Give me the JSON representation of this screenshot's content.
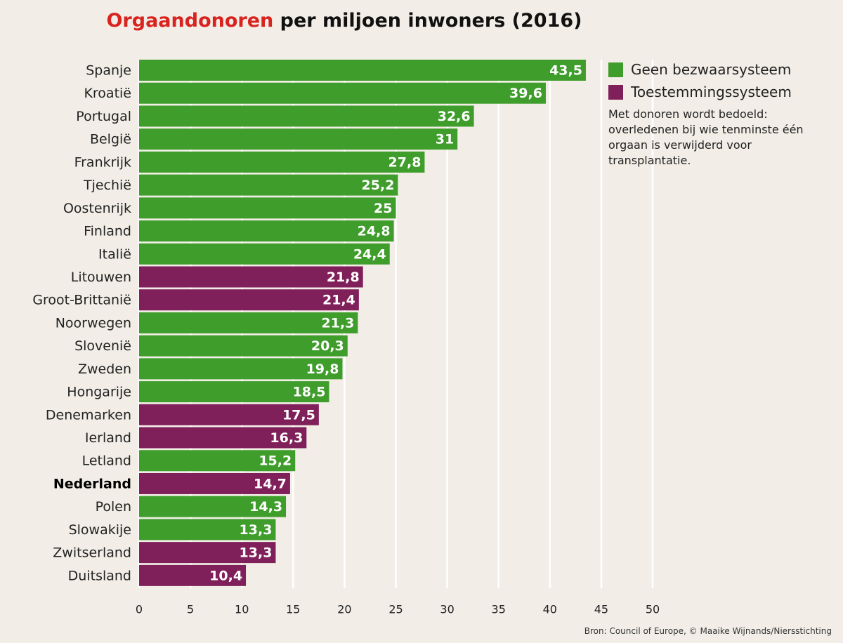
{
  "colors": {
    "opt_out": "#3f9d2b",
    "opt_in": "#80205a",
    "title_accent": "#d8231f",
    "background": "#f2eee7",
    "grid": "#ffffff"
  },
  "title": {
    "accent": "Orgaandonoren",
    "rest": " per miljoen inwoners (2016)"
  },
  "legend": {
    "items": [
      {
        "label": "Geen bezwaarsysteem",
        "color": "#3f9d2b"
      },
      {
        "label": "Toestemmingssysteem",
        "color": "#80205a"
      }
    ],
    "note": "Met donoren wordt bedoeld: overledenen bij wie tenminste één orgaan is verwijderd voor transplantatie."
  },
  "source": "Bron: Council of Europe, © Maaike Wijnands/Niersstichting",
  "chart_data": {
    "type": "bar",
    "orientation": "horizontal",
    "title": "Orgaandonoren per miljoen inwoners (2016)",
    "xlim": [
      0,
      50
    ],
    "xticks": [
      "0",
      "5",
      "10",
      "15",
      "20",
      "25",
      "30",
      "35",
      "40",
      "45",
      "50"
    ],
    "grid": true,
    "legend_position": "top-right",
    "highlight_category": "Nederland",
    "bars": [
      {
        "country": "Spanje",
        "value": 43.5,
        "label": "43,5",
        "system": "opt_out"
      },
      {
        "country": "Kroatië",
        "value": 39.6,
        "label": "39,6",
        "system": "opt_out"
      },
      {
        "country": "Portugal",
        "value": 32.6,
        "label": "32,6",
        "system": "opt_out"
      },
      {
        "country": "België",
        "value": 31,
        "label": "31",
        "system": "opt_out"
      },
      {
        "country": "Frankrijk",
        "value": 27.8,
        "label": "27,8",
        "system": "opt_out"
      },
      {
        "country": "Tjechië",
        "value": 25.2,
        "label": "25,2",
        "system": "opt_out"
      },
      {
        "country": "Oostenrijk",
        "value": 25,
        "label": "25",
        "system": "opt_out"
      },
      {
        "country": "Finland",
        "value": 24.8,
        "label": "24,8",
        "system": "opt_out"
      },
      {
        "country": "Italië",
        "value": 24.4,
        "label": "24,4",
        "system": "opt_out"
      },
      {
        "country": "Litouwen",
        "value": 21.8,
        "label": "21,8",
        "system": "opt_in"
      },
      {
        "country": "Groot-Brittanië",
        "value": 21.4,
        "label": "21,4",
        "system": "opt_in"
      },
      {
        "country": "Noorwegen",
        "value": 21.3,
        "label": "21,3",
        "system": "opt_out"
      },
      {
        "country": "Slovenië",
        "value": 20.3,
        "label": "20,3",
        "system": "opt_out"
      },
      {
        "country": "Zweden",
        "value": 19.8,
        "label": "19,8",
        "system": "opt_out"
      },
      {
        "country": "Hongarije",
        "value": 18.5,
        "label": "18,5",
        "system": "opt_out"
      },
      {
        "country": "Denemarken",
        "value": 17.5,
        "label": "17,5",
        "system": "opt_in"
      },
      {
        "country": "Ierland",
        "value": 16.3,
        "label": "16,3",
        "system": "opt_in"
      },
      {
        "country": "Letland",
        "value": 15.2,
        "label": "15,2",
        "system": "opt_out"
      },
      {
        "country": "Nederland",
        "value": 14.7,
        "label": "14,7",
        "system": "opt_in"
      },
      {
        "country": "Polen",
        "value": 14.3,
        "label": "14,3",
        "system": "opt_out"
      },
      {
        "country": "Slowakije",
        "value": 13.3,
        "label": "13,3",
        "system": "opt_out"
      },
      {
        "country": "Zwitserland",
        "value": 13.3,
        "label": "13,3",
        "system": "opt_in"
      },
      {
        "country": "Duitsland",
        "value": 10.4,
        "label": "10,4",
        "system": "opt_in"
      }
    ]
  }
}
